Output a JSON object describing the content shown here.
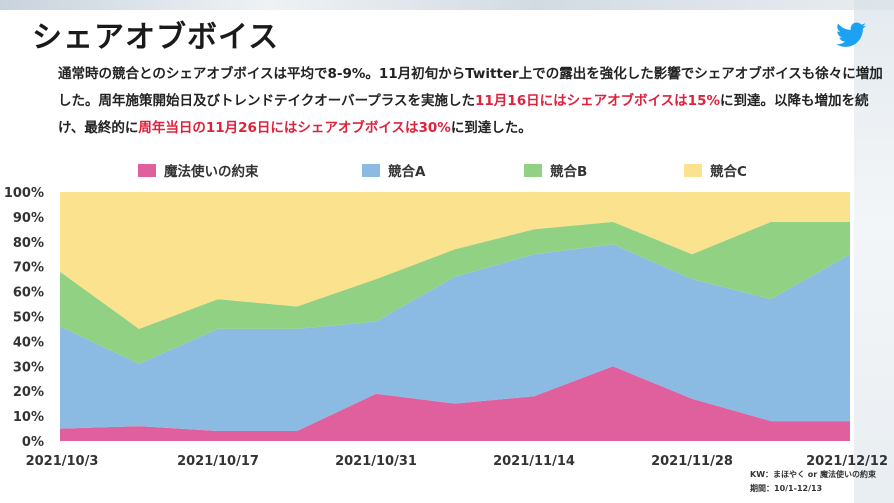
{
  "page": {
    "title": "シェアオブボイス",
    "description": {
      "p1": "通常時の競合とのシェアオブボイスは平均で8-9%。11月初旬からTwitter上での露出を強化した影響でシェアオブボイスも徐々に増加した。周年施策開始日及びトレンドテイクオーバープラスを実施した",
      "h1": "11月16日にはシェアオブボイスは15%",
      "p2": "に到達。以降も増加を続け、最終的に",
      "h2": "周年当日の11月26日にはシェアオブボイスは30%",
      "p3": "に到達した。"
    },
    "footnote": {
      "kw": "KW：まほやく or 魔法使いの約束",
      "period": "期間：10/1-12/13"
    },
    "icon": "twitter-bird-icon",
    "colors": {
      "accent_text": "#e0213c",
      "icon": "#1da1f2"
    }
  },
  "chart_data": {
    "type": "area",
    "stacked": true,
    "x": [
      "2021/10/3",
      "2021/10/10",
      "2021/10/17",
      "2021/10/24",
      "2021/10/31",
      "2021/11/7",
      "2021/11/14",
      "2021/11/21",
      "2021/11/28",
      "2021/12/5",
      "2021/12/12"
    ],
    "series": [
      {
        "name": "魔法使いの約束",
        "color": "#e0609e",
        "values": [
          5,
          6,
          4,
          4,
          19,
          15,
          18,
          30,
          17,
          8,
          8
        ]
      },
      {
        "name": "競合A",
        "color": "#8bbbe2",
        "values": [
          41,
          25,
          41,
          41,
          29,
          51,
          57,
          49,
          48,
          49,
          67
        ]
      },
      {
        "name": "競合B",
        "color": "#90d183",
        "values": [
          22,
          14,
          12,
          9,
          17,
          11,
          10,
          9,
          10,
          31,
          13
        ]
      },
      {
        "name": "競合C",
        "color": "#fae28e",
        "values": [
          32,
          55,
          43,
          46,
          35,
          23,
          15,
          12,
          25,
          12,
          12
        ]
      }
    ],
    "x_tick_labels": [
      "2021/10/3",
      "2021/10/17",
      "2021/10/31",
      "2021/11/14",
      "2021/11/28",
      "2021/12/12"
    ],
    "y_tick_labels": [
      "0%",
      "10%",
      "20%",
      "30%",
      "40%",
      "50%",
      "60%",
      "70%",
      "80%",
      "90%",
      "100%"
    ],
    "ylim": [
      0,
      100
    ],
    "xlabel": "",
    "ylabel": "",
    "grid": false,
    "legend_position": "top"
  }
}
